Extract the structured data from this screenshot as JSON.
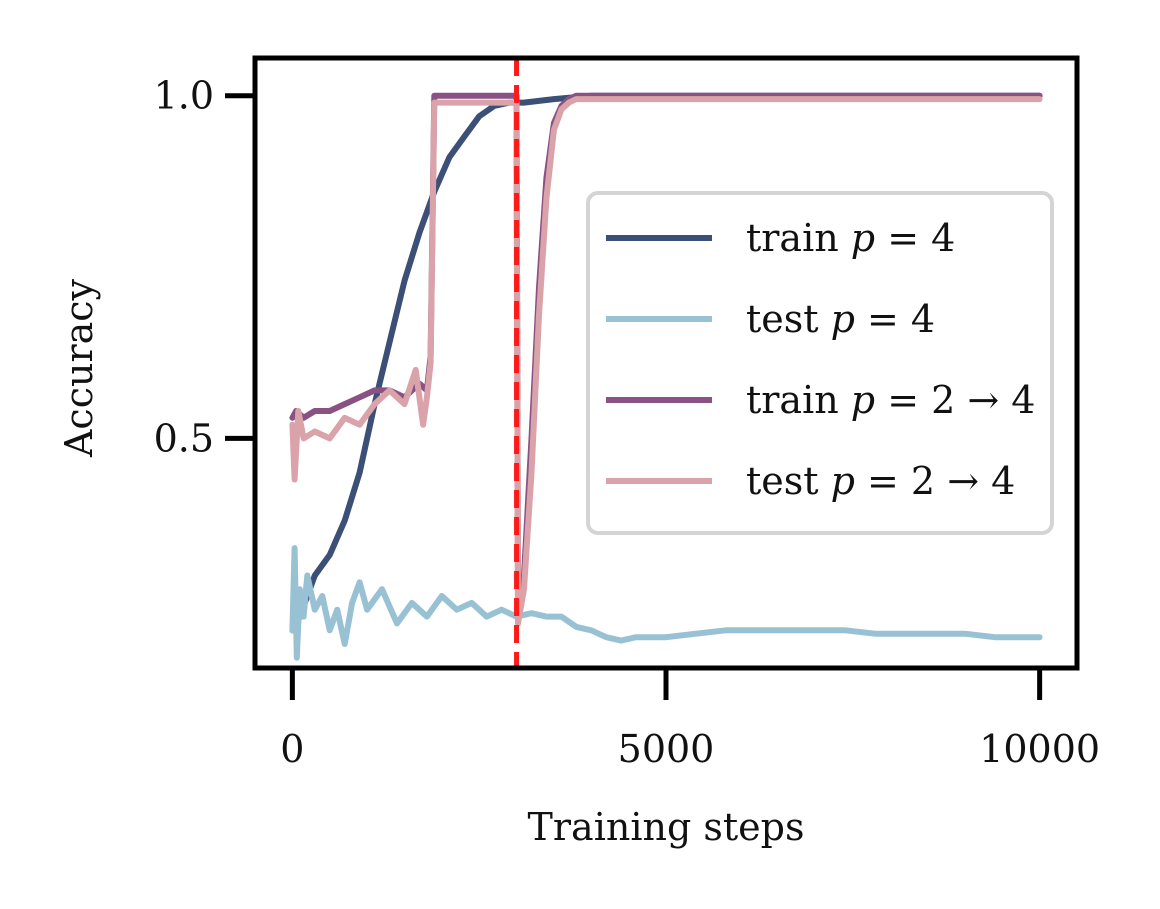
{
  "chart_data": {
    "type": "line",
    "title": "",
    "xlabel": "Training steps",
    "ylabel": "Accuracy",
    "xlim": [
      -500,
      10500
    ],
    "ylim": [
      0.165,
      1.055
    ],
    "xticks": [
      0,
      5000,
      10000
    ],
    "xtick_labels": [
      "0",
      "5000",
      "10000"
    ],
    "yticks": [
      0.5,
      1.0
    ],
    "ytick_labels": [
      "0.5",
      "1.0"
    ],
    "grid": false,
    "legend_position": "center-right",
    "vline": {
      "x": 3000,
      "color": "#ff1a1a",
      "style": "dashed"
    },
    "series": [
      {
        "name": "train p = 4",
        "legend": {
          "prefix": "train ",
          "var": "p",
          "rest": " = 4"
        },
        "color": "#3c4f76",
        "x": [
          0,
          100,
          300,
          500,
          700,
          900,
          1100,
          1300,
          1500,
          1700,
          1900,
          2100,
          2300,
          2500,
          2700,
          2900,
          3100,
          3500,
          4000,
          5000,
          10000
        ],
        "y": [
          0.22,
          0.24,
          0.3,
          0.33,
          0.38,
          0.45,
          0.55,
          0.64,
          0.73,
          0.8,
          0.86,
          0.91,
          0.94,
          0.97,
          0.985,
          0.99,
          0.99,
          0.995,
          1.0,
          1.0,
          1.0
        ]
      },
      {
        "name": "test p = 4",
        "legend": {
          "prefix": "test ",
          "var": "p",
          "rest": " = 4"
        },
        "color": "#98c1d3",
        "x": [
          0,
          30,
          60,
          100,
          150,
          200,
          300,
          400,
          500,
          600,
          700,
          800,
          900,
          1000,
          1200,
          1400,
          1600,
          1800,
          2000,
          2200,
          2400,
          2600,
          2800,
          3000,
          3200,
          3400,
          3600,
          3800,
          4000,
          4200,
          4400,
          4600,
          5000,
          5400,
          5800,
          6200,
          6600,
          7000,
          7400,
          7800,
          8200,
          8600,
          9000,
          9400,
          10000
        ],
        "y": [
          0.22,
          0.34,
          0.18,
          0.28,
          0.24,
          0.3,
          0.25,
          0.27,
          0.22,
          0.25,
          0.2,
          0.26,
          0.29,
          0.25,
          0.28,
          0.23,
          0.26,
          0.24,
          0.27,
          0.25,
          0.26,
          0.24,
          0.25,
          0.24,
          0.245,
          0.24,
          0.24,
          0.225,
          0.22,
          0.21,
          0.205,
          0.21,
          0.21,
          0.215,
          0.22,
          0.22,
          0.22,
          0.22,
          0.22,
          0.215,
          0.215,
          0.215,
          0.215,
          0.21,
          0.21
        ]
      },
      {
        "name": "train p = 2 → 4",
        "legend": {
          "prefix": "train ",
          "var": "p",
          "rest": " = 2 → 4"
        },
        "color": "#8a5284",
        "x": [
          0,
          50,
          150,
          300,
          500,
          700,
          900,
          1100,
          1300,
          1500,
          1700,
          1800,
          1850,
          1900,
          2000,
          2500,
          3000,
          3020,
          3100,
          3200,
          3300,
          3400,
          3500,
          3600,
          3700,
          3800,
          4000,
          5000,
          10000
        ],
        "y": [
          0.53,
          0.54,
          0.53,
          0.54,
          0.54,
          0.55,
          0.56,
          0.57,
          0.57,
          0.56,
          0.58,
          0.57,
          0.62,
          1.0,
          1.0,
          1.0,
          1.0,
          0.27,
          0.3,
          0.5,
          0.72,
          0.88,
          0.96,
          0.985,
          0.995,
          1.0,
          1.0,
          1.0,
          1.0
        ]
      },
      {
        "name": "test p = 2 → 4",
        "legend": {
          "prefix": "test ",
          "var": "p",
          "rest": " = 2 → 4"
        },
        "color": "#d9a3a9",
        "x": [
          0,
          30,
          80,
          150,
          300,
          500,
          700,
          900,
          1100,
          1300,
          1500,
          1650,
          1750,
          1800,
          1850,
          1900,
          2000,
          2500,
          3000,
          3020,
          3100,
          3200,
          3300,
          3400,
          3500,
          3600,
          3700,
          3800,
          4000,
          5000,
          10000
        ],
        "y": [
          0.52,
          0.44,
          0.54,
          0.5,
          0.51,
          0.5,
          0.53,
          0.52,
          0.55,
          0.57,
          0.55,
          0.6,
          0.52,
          0.56,
          0.61,
          0.99,
          0.99,
          0.99,
          0.99,
          0.23,
          0.28,
          0.45,
          0.68,
          0.85,
          0.95,
          0.98,
          0.99,
          0.995,
          0.995,
          0.995,
          0.995
        ]
      }
    ]
  }
}
